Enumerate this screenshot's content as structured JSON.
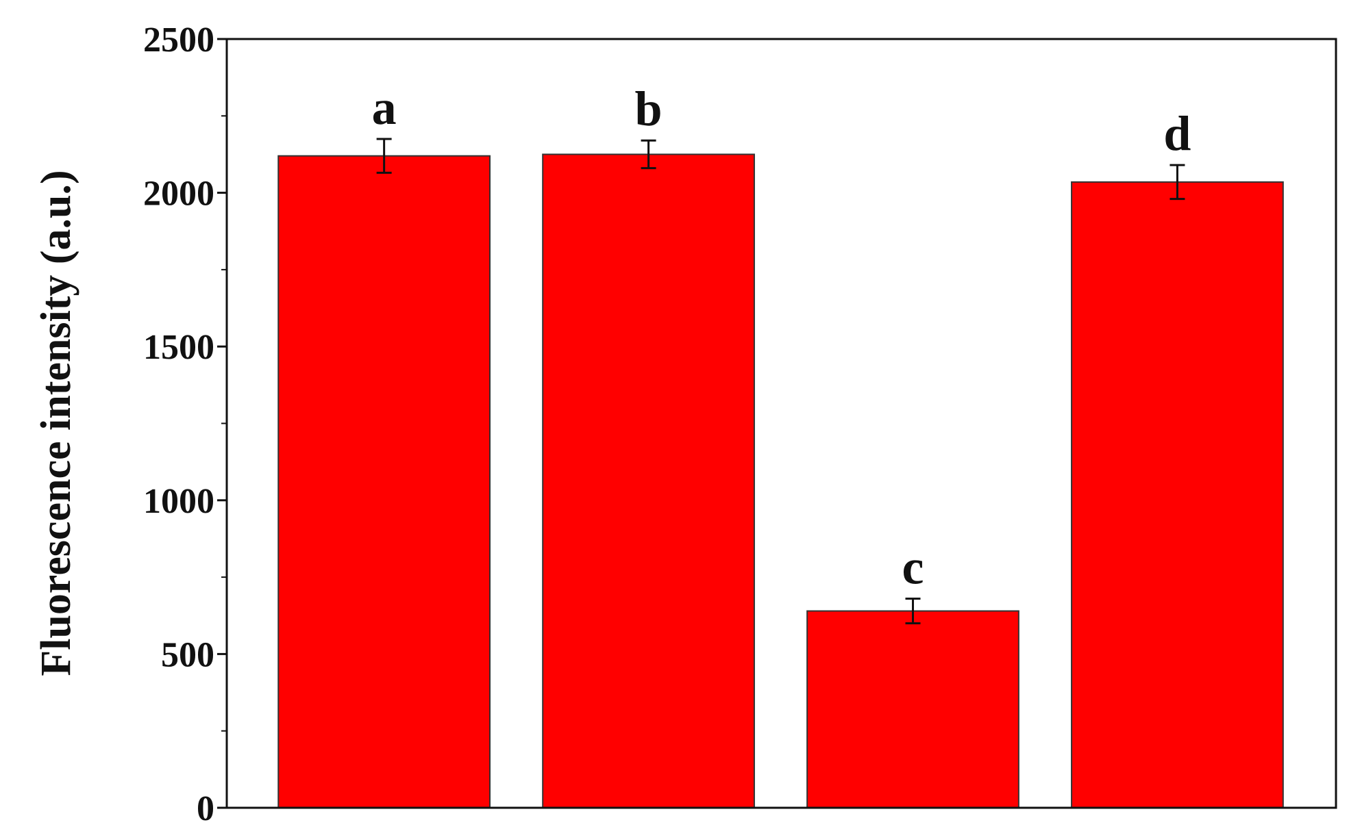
{
  "chart_data": {
    "type": "bar",
    "y_label": "Fluorescence intensity (a.u.)",
    "categories": [
      "a",
      "b",
      "c",
      "d"
    ],
    "values": [
      2120,
      2125,
      640,
      2035
    ],
    "errors": [
      55,
      45,
      40,
      55
    ],
    "color": "#ff0000",
    "ylim": [
      0,
      2500
    ],
    "yticks": [
      0,
      500,
      1000,
      1500,
      2000,
      2500
    ],
    "grid": false
  }
}
